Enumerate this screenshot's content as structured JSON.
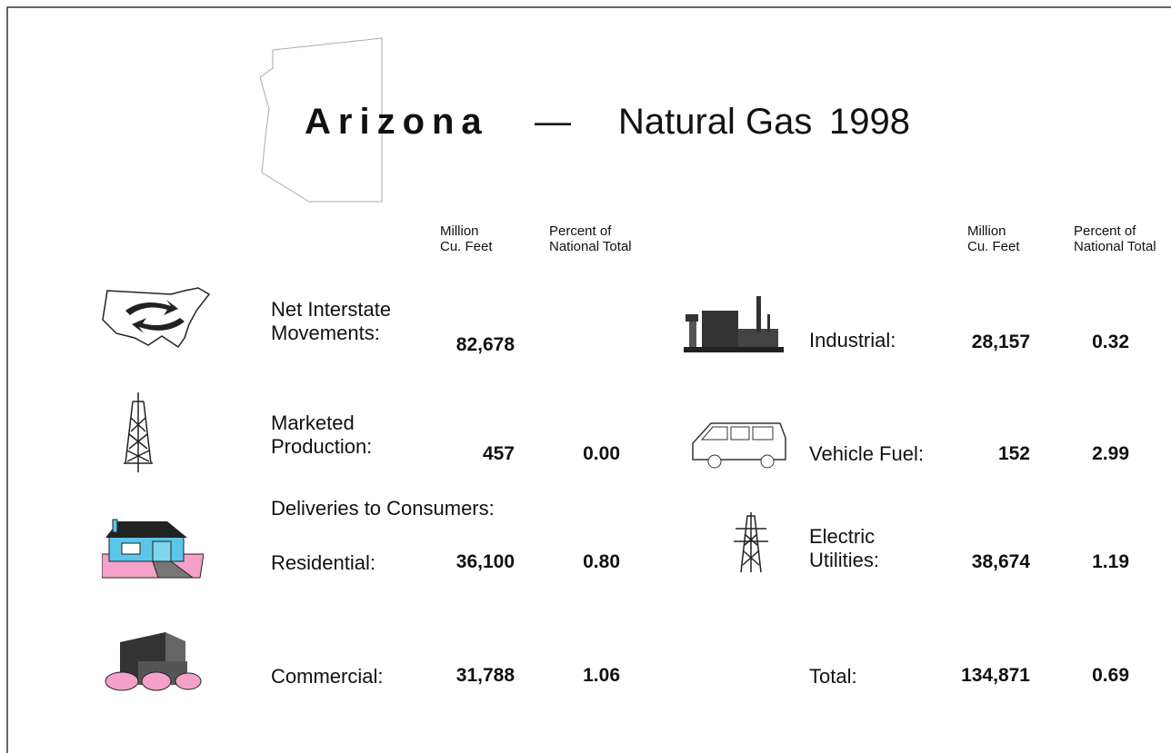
{
  "title": {
    "state": "Arizona",
    "dash": "—",
    "subject": "Natural Gas",
    "year": "1998"
  },
  "headers": {
    "left": {
      "volume": [
        "Million",
        "Cu. Feet"
      ],
      "percent": [
        "Percent of",
        "National Total"
      ]
    },
    "right": {
      "volume": [
        "Million",
        "Cu. Feet"
      ],
      "percent": [
        "Percent of",
        "National Total"
      ]
    }
  },
  "left": [
    {
      "label": [
        "Net Interstate",
        "Movements:"
      ],
      "volume": "82,678"
    },
    {
      "label": [
        "Marketed",
        "Production:"
      ],
      "volume": "457",
      "percent": "0.00"
    },
    {
      "label": [
        "Deliveries to Consumers:"
      ]
    },
    {
      "label": [
        "Residential:"
      ],
      "volume": "36,100",
      "percent": "0.80"
    },
    {
      "label": [
        "Commercial:"
      ],
      "volume": "31,788",
      "percent": "1.06"
    }
  ],
  "right": [
    {
      "label": [
        "Industrial:"
      ],
      "volume": "28,157",
      "percent": "0.32"
    },
    {
      "label": [
        "Vehicle Fuel:"
      ],
      "volume": "152",
      "percent": "2.99"
    },
    {
      "label": [
        "Electric",
        "Utilities:"
      ],
      "volume": "38,674",
      "percent": "1.19"
    },
    {
      "label": [
        "Total:"
      ],
      "volume": "134,871",
      "percent": "0.69"
    }
  ]
}
